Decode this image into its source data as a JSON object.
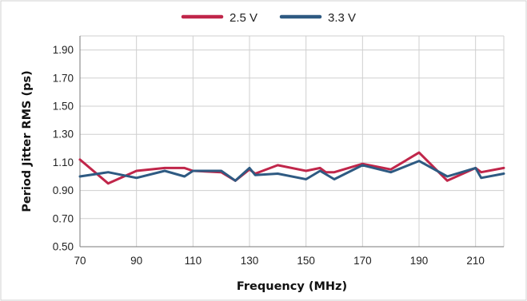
{
  "chart_data": {
    "type": "line",
    "title": "",
    "xlabel": "Frequency (MHz)",
    "ylabel": "Period Jitter RMS (ps)",
    "xlim": [
      70,
      220
    ],
    "ylim": [
      0.5,
      2.0
    ],
    "x_ticks": [
      70,
      90,
      110,
      130,
      150,
      170,
      190,
      210
    ],
    "y_ticks": [
      "0.50",
      "0.70",
      "0.90",
      "1.10",
      "1.30",
      "1.50",
      "1.70",
      "1.90"
    ],
    "grid": true,
    "legend_position": "top",
    "series": [
      {
        "name": "2.5 V",
        "color": "#c0264a",
        "x": [
          70,
          80,
          90,
          100,
          107,
          110,
          120,
          125,
          130,
          132,
          140,
          150,
          155,
          157,
          160,
          170,
          180,
          190,
          200,
          210,
          212,
          220
        ],
        "y": [
          1.12,
          0.95,
          1.04,
          1.06,
          1.06,
          1.04,
          1.03,
          0.97,
          1.05,
          1.02,
          1.08,
          1.04,
          1.06,
          1.03,
          1.03,
          1.09,
          1.05,
          1.17,
          0.97,
          1.06,
          1.03,
          1.06
        ]
      },
      {
        "name": "3.3 V",
        "color": "#2e5a82",
        "x": [
          70,
          80,
          90,
          100,
          107,
          110,
          120,
          125,
          130,
          132,
          140,
          150,
          155,
          160,
          170,
          180,
          190,
          200,
          210,
          212,
          220
        ],
        "y": [
          1.0,
          1.03,
          0.99,
          1.04,
          1.0,
          1.04,
          1.04,
          0.97,
          1.06,
          1.01,
          1.02,
          0.98,
          1.04,
          0.98,
          1.08,
          1.03,
          1.11,
          1.0,
          1.06,
          0.99,
          1.02
        ]
      }
    ]
  }
}
